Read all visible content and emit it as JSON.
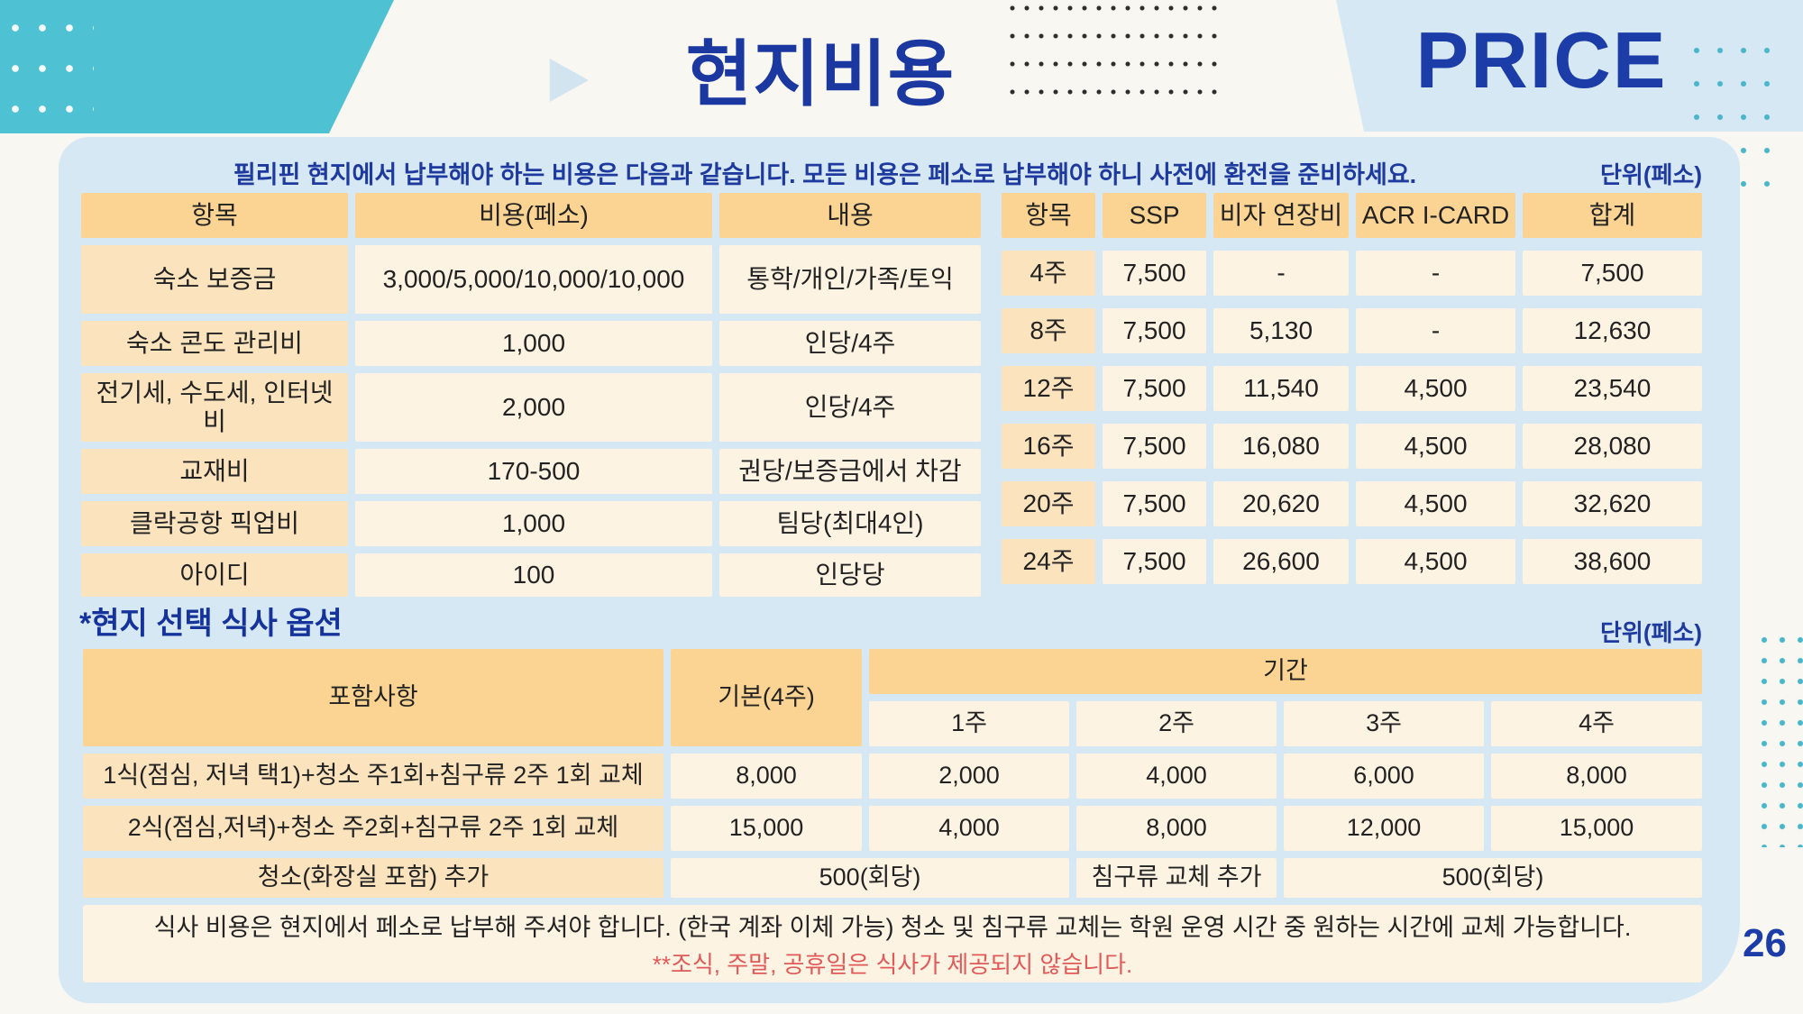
{
  "header": {
    "title": "현지비용",
    "price_label": "PRICE",
    "page_number": "26"
  },
  "intro": {
    "text": "필리핀 현지에서 납부해야 하는 비용은 다음과 같습니다. 모든 비용은 페소로 납부해야 하니 사전에 환전을 준비하세요.",
    "unit_label": "단위(페소)"
  },
  "cost_table": {
    "headers": [
      "항목",
      "비용(페소)",
      "내용"
    ],
    "rows": [
      {
        "item": "숙소 보증금",
        "cost": "3,000/5,000/10,000/10,000",
        "desc": "통학/개인/가족/토익"
      },
      {
        "item": "숙소 콘도 관리비",
        "cost": "1,000",
        "desc": "인당/4주"
      },
      {
        "item": "전기세, 수도세, 인터넷비",
        "cost": "2,000",
        "desc": "인당/4주"
      },
      {
        "item": "교재비",
        "cost": "170-500",
        "desc": "권당/보증금에서 차감"
      },
      {
        "item": "클락공항 픽업비",
        "cost": "1,000",
        "desc": "팀당(최대4인)"
      },
      {
        "item": "아이디",
        "cost": "100",
        "desc": "인당당"
      }
    ]
  },
  "visa_table": {
    "headers": [
      "항목",
      "SSP",
      "비자 연장비",
      "ACR I-CARD",
      "합계"
    ],
    "rows": [
      {
        "period": "4주",
        "ssp": "7,500",
        "visa": "-",
        "acr": "-",
        "total": "7,500"
      },
      {
        "period": "8주",
        "ssp": "7,500",
        "visa": "5,130",
        "acr": "-",
        "total": "12,630"
      },
      {
        "period": "12주",
        "ssp": "7,500",
        "visa": "11,540",
        "acr": "4,500",
        "total": "23,540"
      },
      {
        "period": "16주",
        "ssp": "7,500",
        "visa": "16,080",
        "acr": "4,500",
        "total": "28,080"
      },
      {
        "period": "20주",
        "ssp": "7,500",
        "visa": "20,620",
        "acr": "4,500",
        "total": "32,620"
      },
      {
        "period": "24주",
        "ssp": "7,500",
        "visa": "26,600",
        "acr": "4,500",
        "total": "38,600"
      }
    ]
  },
  "meal_section": {
    "title": "*현지 선택 식사 옵션",
    "unit_label": "단위(페소)",
    "table": {
      "col_included": "포함사항",
      "col_basic": "기본(4주)",
      "col_period": "기간",
      "sub_headers": [
        "1주",
        "2주",
        "3주",
        "4주"
      ],
      "rows": [
        {
          "included": "1식(점심, 저녁 택1)+청소 주1회+침구류 2주 1회 교체",
          "basic": "8,000",
          "w1": "2,000",
          "w2": "4,000",
          "w3": "6,000",
          "w4": "8,000"
        },
        {
          "included": "2식(점심,저녁)+청소 주2회+침구류 2주 1회 교체",
          "basic": "15,000",
          "w1": "4,000",
          "w2": "8,000",
          "w3": "12,000",
          "w4": "15,000"
        }
      ],
      "extra_row": {
        "label": "청소(화장실 포함) 추가",
        "value1": "500(회당)",
        "label2": "침구류 교체 추가",
        "value2": "500(회당)"
      }
    },
    "note_line1": "식사 비용은 현지에서 페소로 납부해 주셔야 합니다. (한국 계좌 이체 가능) 청소 및 침구류 교체는 학원 운영 시간 중 원하는 시간에 교체 가능합니다.",
    "note_line2": "**조식, 주말, 공휴일은 식사가 제공되지 않습니다."
  },
  "colors": {
    "accent_teal": "#4ec1d3",
    "panel_blue": "#d7e8f5",
    "navy": "#1a38a0",
    "header_orange": "#fbd493",
    "cell_peach": "#fbe3be",
    "cell_cream": "#fdf3e2",
    "note_red": "#e05a5a",
    "background": "#f8f7f2"
  }
}
